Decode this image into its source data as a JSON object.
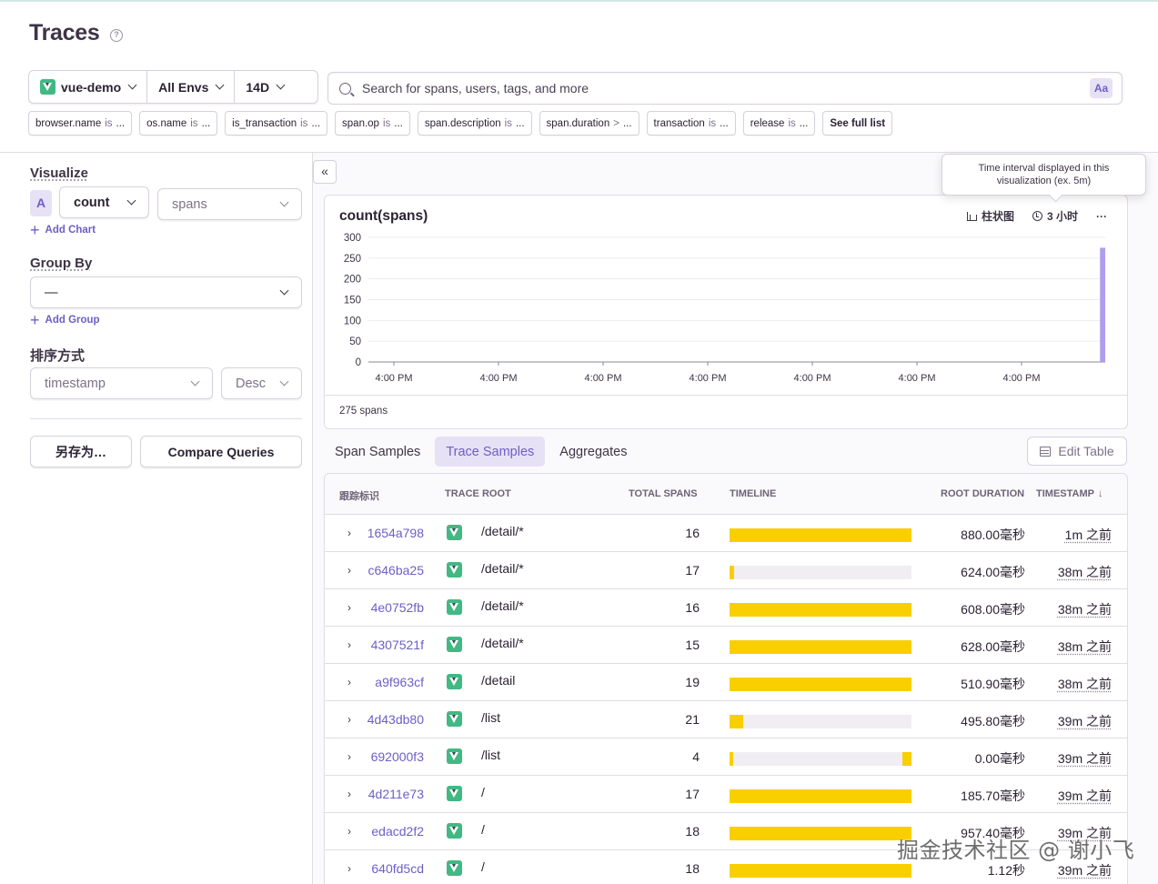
{
  "page": {
    "title": "Traces"
  },
  "selectors": {
    "project": "vue-demo",
    "environment": "All Envs",
    "period": "14D"
  },
  "search": {
    "placeholder": "Search for spans, users, tags, and more",
    "case_toggle": "Aa"
  },
  "filters": [
    {
      "key": "browser.name",
      "op": "is",
      "value": "..."
    },
    {
      "key": "os.name",
      "op": "is",
      "value": "..."
    },
    {
      "key": "is_transaction",
      "op": "is",
      "value": "..."
    },
    {
      "key": "span.op",
      "op": "is",
      "value": "..."
    },
    {
      "key": "span.description",
      "op": "is",
      "value": "..."
    },
    {
      "key": "span.duration",
      "op": ">",
      "value": "..."
    },
    {
      "key": "transaction",
      "op": "is",
      "value": "..."
    },
    {
      "key": "release",
      "op": "is",
      "value": "..."
    }
  ],
  "see_full_list": "See full list",
  "sidebar": {
    "visualize_label": "Visualize",
    "series_letter": "A",
    "aggregate": "count",
    "field": "spans",
    "add_chart": "Add Chart",
    "group_by_label": "Group By",
    "group_by_value": "—",
    "add_group": "Add Group",
    "sort_label": "排序方式",
    "sort_field": "timestamp",
    "sort_order": "Desc",
    "save_as": "另存为…",
    "compare": "Compare Queries"
  },
  "collapse_glyph": "«",
  "tooltip": "Time interval displayed in this visualization (ex. 5m)",
  "chart": {
    "title": "count(spans)",
    "chart_type_label": "柱状图",
    "interval_label": "3 小时",
    "more": "···",
    "footer": "275 spans",
    "colors": {
      "bar": "#b29dec"
    }
  },
  "chart_data": {
    "type": "bar",
    "title": "count(spans)",
    "xlabel": "",
    "ylabel": "",
    "ylim": [
      0,
      300
    ],
    "yticks": [
      0,
      50,
      100,
      150,
      200,
      250,
      300
    ],
    "xtick_labels": [
      "4:00 PM",
      "4:00 PM",
      "4:00 PM",
      "4:00 PM",
      "4:00 PM",
      "4:00 PM",
      "4:00 PM"
    ],
    "bar_count": 112,
    "values_nonzero": [
      {
        "index": 111,
        "value": 275
      }
    ],
    "grid": true
  },
  "tabs": [
    "Span Samples",
    "Trace Samples",
    "Aggregates"
  ],
  "active_tab": 1,
  "edit_table": "Edit Table",
  "table": {
    "headers": [
      "跟踪标识",
      "TRACE ROOT",
      "TOTAL SPANS",
      "TIMELINE",
      "ROOT DURATION",
      "TIMESTAMP"
    ],
    "sort_glyph": "↓",
    "rows": [
      {
        "id": "1654a798",
        "root": "/detail/*",
        "spans": "16",
        "timeline": [
          [
            0,
            1.0
          ]
        ],
        "duration": "880.00毫秒",
        "timestamp": "1m 之前"
      },
      {
        "id": "c646ba25",
        "root": "/detail/*",
        "spans": "17",
        "timeline": [
          [
            0,
            0.025
          ]
        ],
        "duration": "624.00毫秒",
        "timestamp": "38m 之前"
      },
      {
        "id": "4e0752fb",
        "root": "/detail/*",
        "spans": "16",
        "timeline": [
          [
            0,
            1.0
          ]
        ],
        "duration": "608.00毫秒",
        "timestamp": "38m 之前"
      },
      {
        "id": "4307521f",
        "root": "/detail/*",
        "spans": "15",
        "timeline": [
          [
            0,
            1.0
          ]
        ],
        "duration": "628.00毫秒",
        "timestamp": "38m 之前"
      },
      {
        "id": "a9f963cf",
        "root": "/detail",
        "spans": "19",
        "timeline": [
          [
            0,
            1.0
          ]
        ],
        "duration": "510.90毫秒",
        "timestamp": "38m 之前"
      },
      {
        "id": "4d43db80",
        "root": "/list",
        "spans": "21",
        "timeline": [
          [
            0,
            0.075
          ]
        ],
        "duration": "495.80毫秒",
        "timestamp": "39m 之前"
      },
      {
        "id": "692000f3",
        "root": "/list",
        "spans": "4",
        "timeline": [
          [
            0,
            0.02
          ],
          [
            0.95,
            0.05
          ]
        ],
        "duration": "0.00毫秒",
        "timestamp": "39m 之前"
      },
      {
        "id": "4d211e73",
        "root": "/",
        "spans": "17",
        "timeline": [
          [
            0,
            1.0
          ]
        ],
        "duration": "185.70毫秒",
        "timestamp": "39m 之前"
      },
      {
        "id": "edacd2f2",
        "root": "/",
        "spans": "18",
        "timeline": [
          [
            0,
            1.0
          ]
        ],
        "duration": "957.40毫秒",
        "timestamp": "39m 之前"
      },
      {
        "id": "640fd5cd",
        "root": "/",
        "spans": "18",
        "timeline": [
          [
            0,
            1.0
          ]
        ],
        "duration": "1.12秒",
        "timestamp": "39m 之前"
      }
    ]
  },
  "watermark": "掘金技术社区 @ 谢小飞"
}
